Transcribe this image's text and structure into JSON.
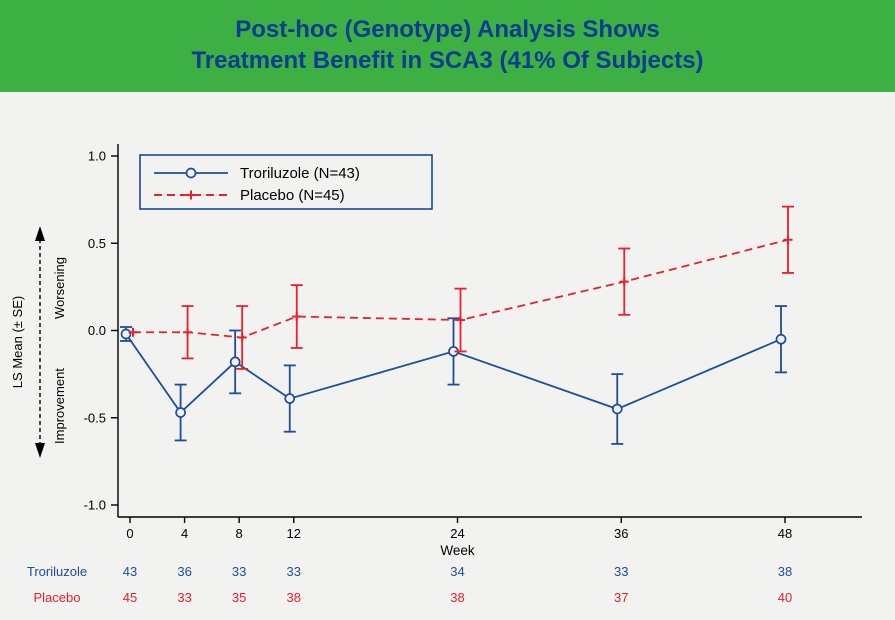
{
  "header": {
    "title_line1": "Post-hoc (Genotype) Analysis Shows",
    "title_line2": "Treatment Benefit in SCA3 (41% Of Subjects)",
    "background_color": "#3cb043",
    "title_color": "#0b3d91"
  },
  "chart_data": {
    "type": "line",
    "x": [
      0,
      4,
      8,
      12,
      24,
      36,
      48
    ],
    "xlabel": "Week",
    "ylabel": "LS Mean (± SE)",
    "ylim": [
      -1.0,
      1.0
    ],
    "y_ticks": [
      1.0,
      0.5,
      0.0,
      -0.5,
      -1.0
    ],
    "y_tick_labels": [
      "1.0",
      "0.5",
      "0.0",
      "-0.5",
      "-1.0"
    ],
    "axis_annotations": {
      "up": "Worsening",
      "down": "Improvement"
    },
    "grid": false,
    "legend_position": "top-left",
    "series": [
      {
        "name": "Troriluzole (N=43)",
        "color": "#1b4e9b",
        "style": "solid",
        "marker": "circle",
        "values": [
          -0.02,
          -0.47,
          -0.18,
          -0.39,
          -0.12,
          -0.45,
          -0.05
        ],
        "se": [
          0.04,
          0.16,
          0.18,
          0.19,
          0.19,
          0.2,
          0.19
        ]
      },
      {
        "name": "Placebo (N=45)",
        "color": "#e8212c",
        "style": "dashed",
        "marker": "plus",
        "values": [
          -0.01,
          -0.01,
          -0.04,
          0.08,
          0.06,
          0.28,
          0.52
        ],
        "se": [
          0.02,
          0.15,
          0.18,
          0.18,
          0.18,
          0.19,
          0.19
        ]
      }
    ]
  },
  "counts_table": {
    "rows": [
      {
        "label": "Troriluzole",
        "color": "#1b4e9b",
        "values": [
          43,
          36,
          33,
          33,
          34,
          33,
          38
        ]
      },
      {
        "label": "Placebo",
        "color": "#e8212c",
        "values": [
          45,
          33,
          35,
          38,
          38,
          37,
          40
        ]
      }
    ]
  }
}
